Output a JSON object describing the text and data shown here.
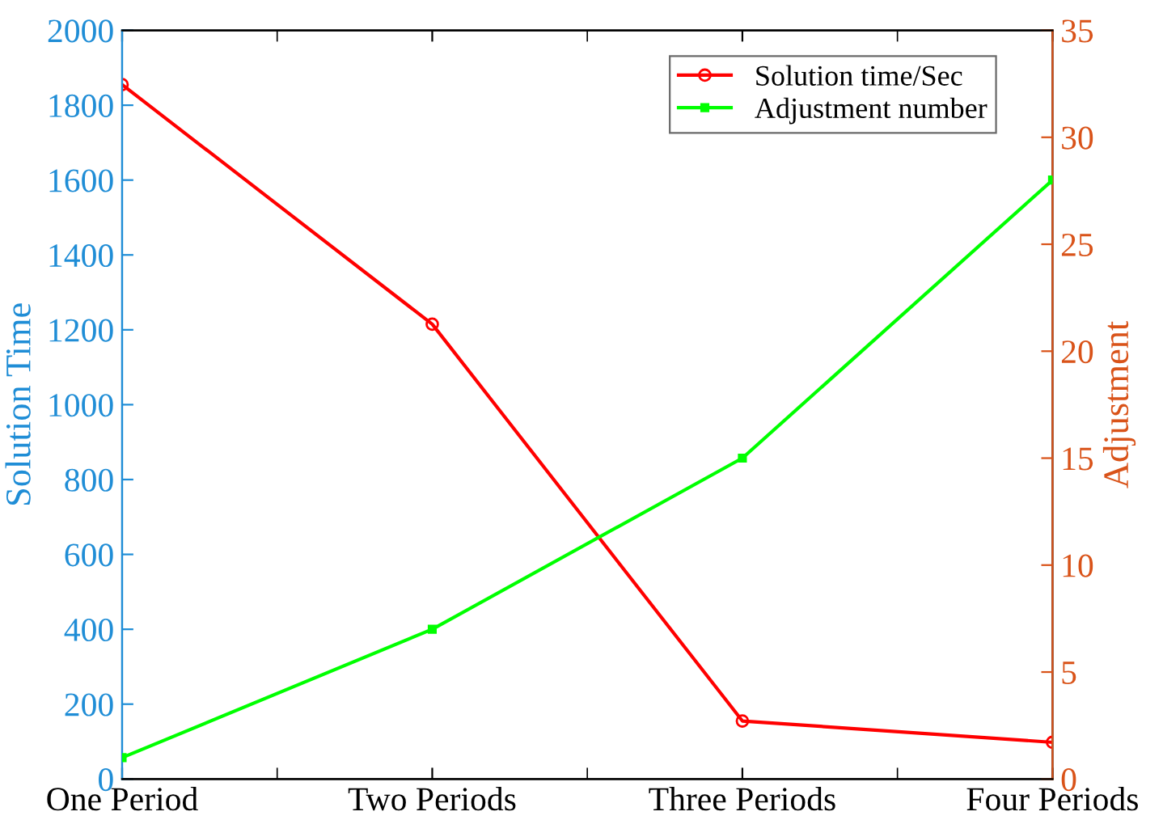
{
  "chart_data": {
    "type": "line",
    "ylabel": "Solution Time",
    "y2label": "Adjustment",
    "categories": [
      "One Period",
      "Two Periods",
      "Three Periods",
      "Four Periods"
    ],
    "series": [
      {
        "name": "Solution time/Sec",
        "color": "#ff0000",
        "values": [
          1855,
          1215,
          155,
          98
        ],
        "marker": "circle"
      },
      {
        "name": "Adjustment number",
        "color": "#00ff00",
        "values": [
          1,
          7,
          15,
          28
        ],
        "marker": "square",
        "axis": "y2"
      }
    ],
    "ylim": [
      0,
      2000
    ],
    "yticks": [
      0,
      200,
      400,
      600,
      800,
      1000,
      1200,
      1400,
      1600,
      1800,
      2000
    ],
    "y2lim": [
      0,
      35
    ],
    "y2ticks": [
      0,
      5,
      10,
      15,
      20,
      25,
      30,
      35
    ],
    "legend": "top right",
    "grid": false,
    "line_style": "solid"
  }
}
